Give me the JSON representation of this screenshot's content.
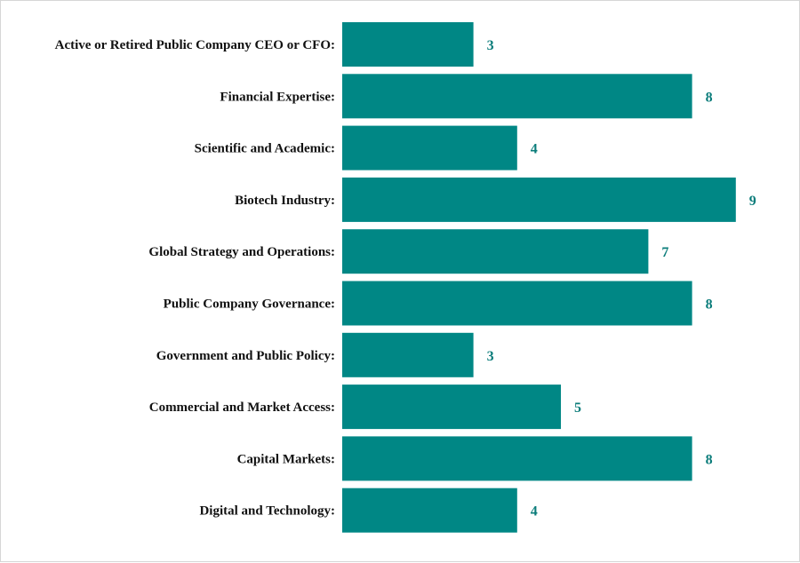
{
  "chart_data": {
    "type": "bar",
    "orientation": "horizontal",
    "title": "",
    "xlabel": "",
    "ylabel": "",
    "xlim": [
      0,
      9
    ],
    "grid": false,
    "categories": [
      "Active or Retired Public Company CEO or CFO:",
      "Financial Expertise:",
      "Scientific and Academic:",
      "Biotech Industry:",
      "Global Strategy and Operations:",
      "Public Company Governance:",
      "Government and Public Policy:",
      "Commercial and Market Access:",
      "Capital Markets:",
      "Digital and Technology:"
    ],
    "values": [
      3,
      8,
      4,
      9,
      7,
      8,
      3,
      5,
      8,
      4
    ],
    "colors": {
      "bar": "#008785",
      "value_label": "#0a7c7a",
      "category_label": "#111111"
    }
  }
}
